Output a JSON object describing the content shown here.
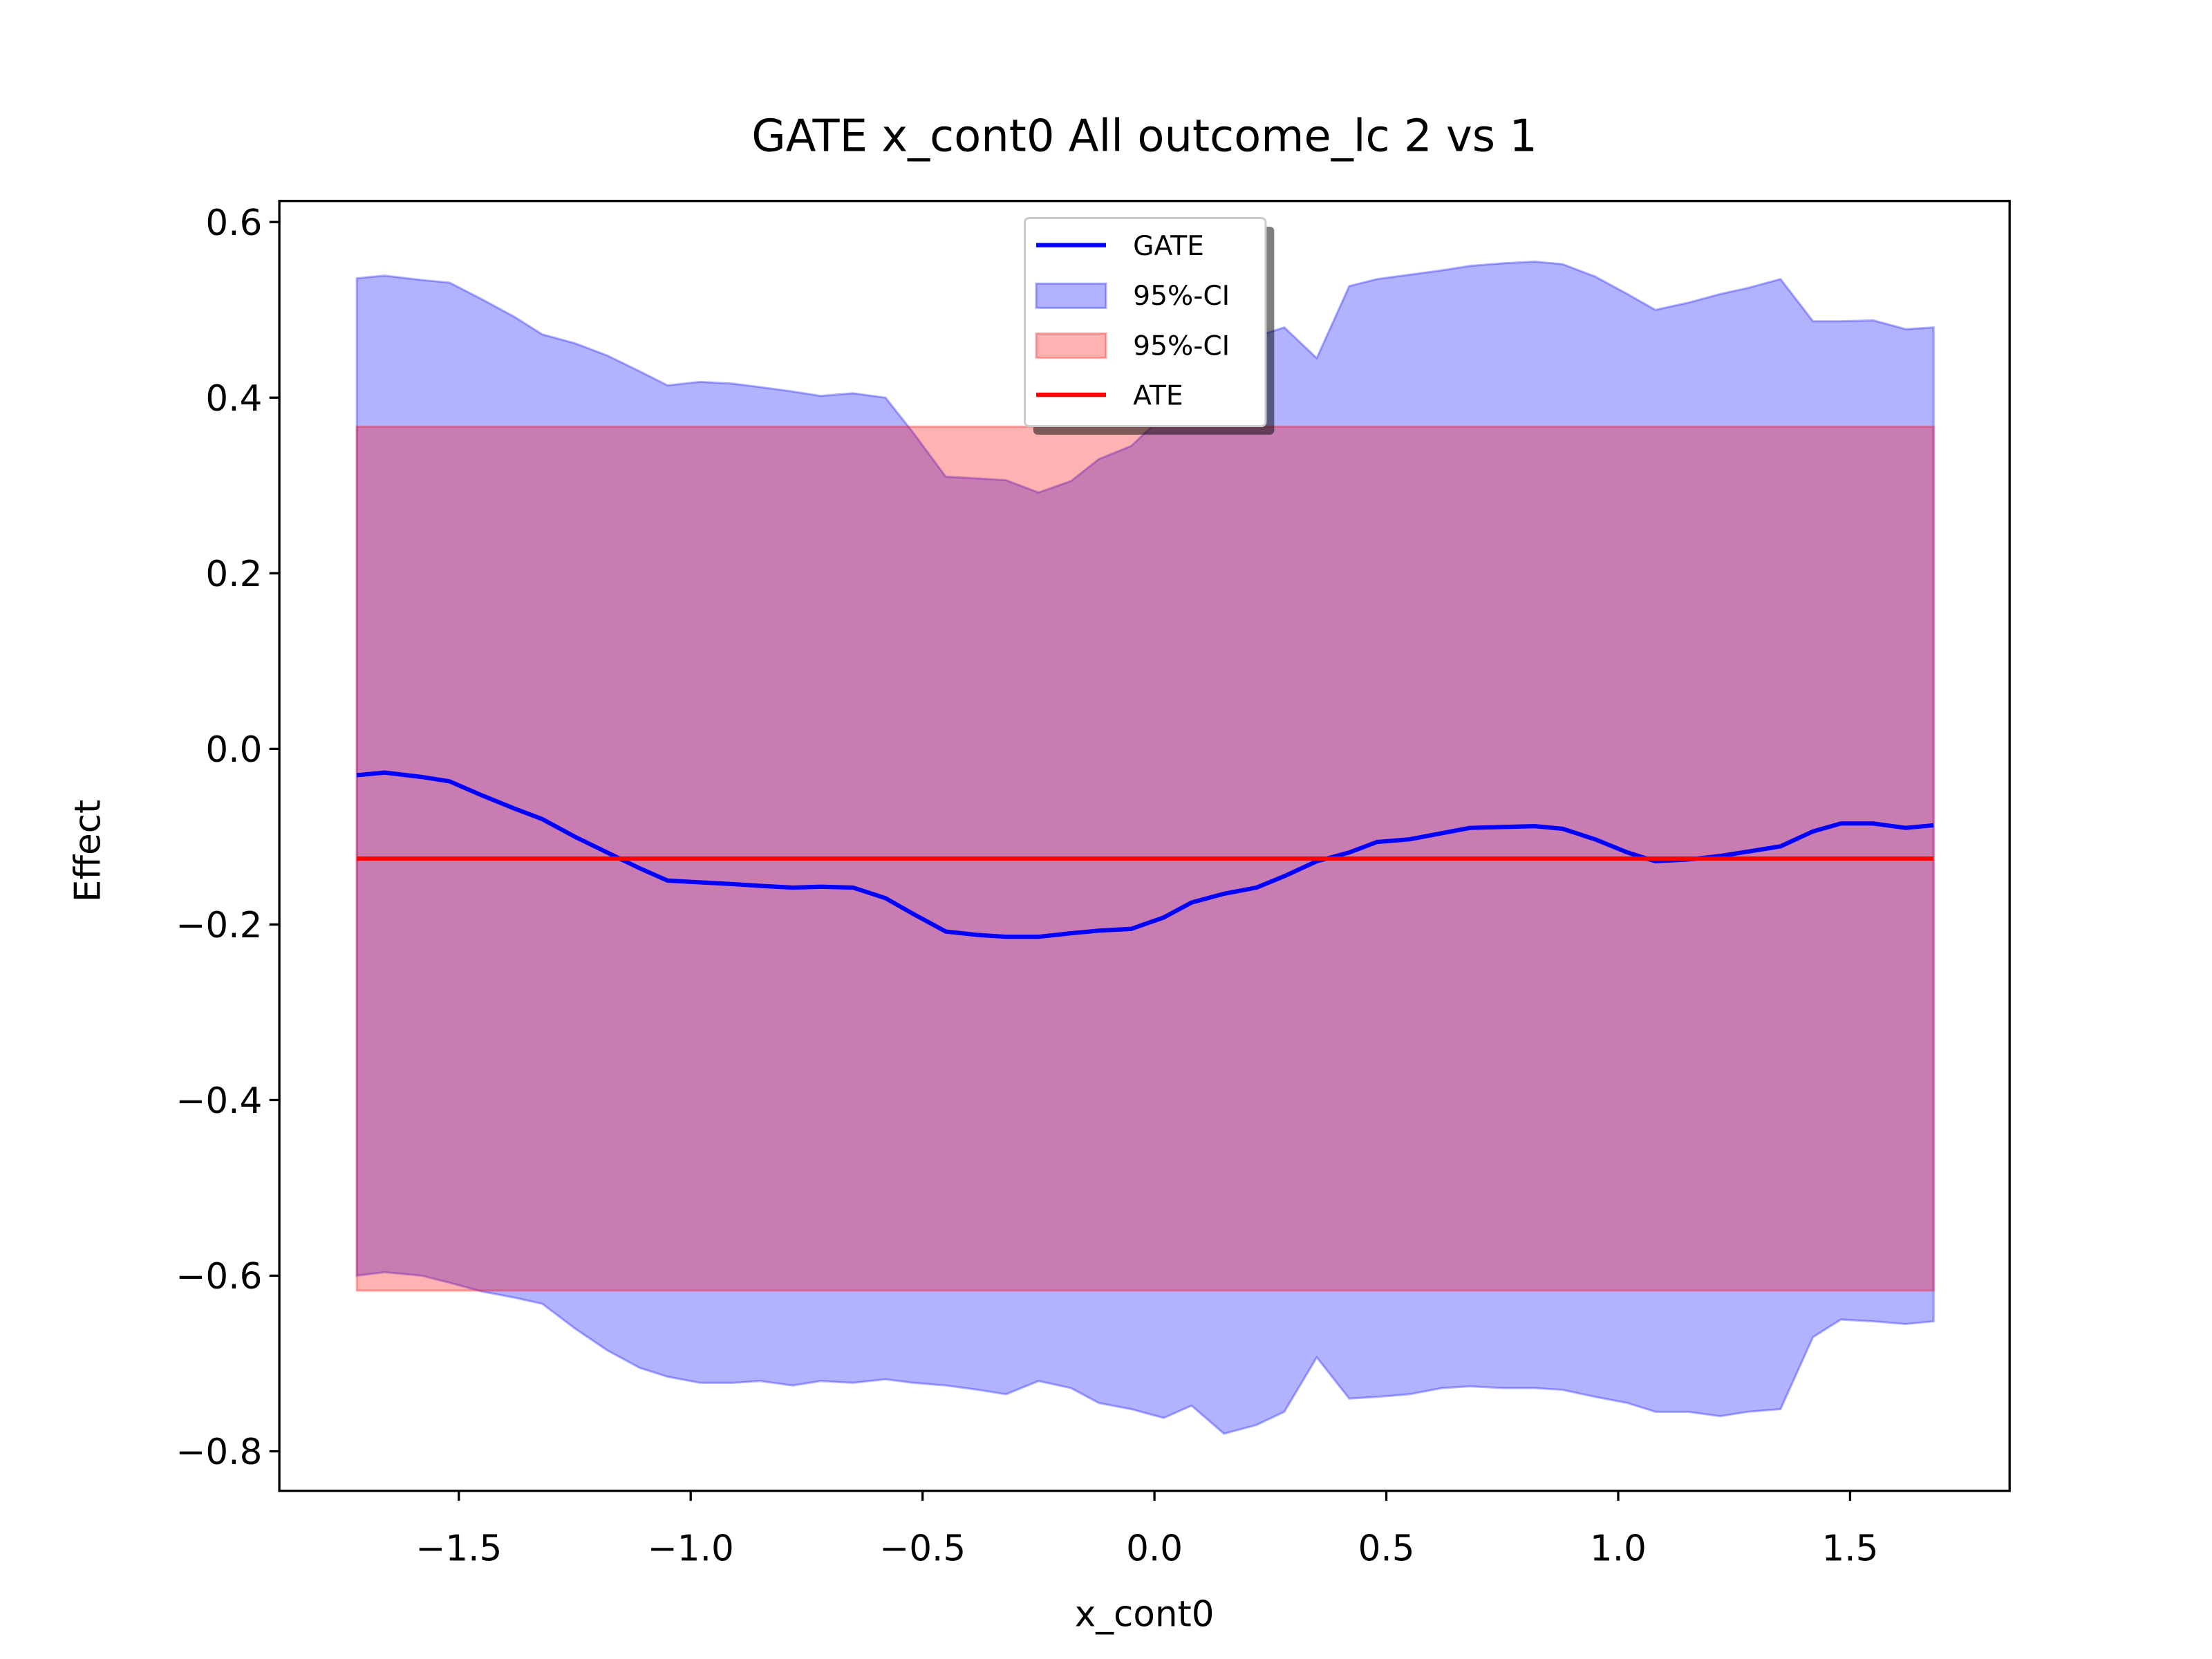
{
  "chart_data": {
    "type": "line",
    "title": "GATE x_cont0 All outcome_lc  2 vs 1",
    "xlabel": "x_cont0",
    "ylabel": "Effect",
    "x": [
      -1.72,
      -1.66,
      -1.58,
      -1.52,
      -1.45,
      -1.38,
      -1.32,
      -1.25,
      -1.18,
      -1.11,
      -1.05,
      -0.98,
      -0.91,
      -0.85,
      -0.78,
      -0.72,
      -0.65,
      -0.58,
      -0.52,
      -0.45,
      -0.38,
      -0.32,
      -0.25,
      -0.18,
      -0.12,
      -0.05,
      0.02,
      0.08,
      0.15,
      0.22,
      0.28,
      0.35,
      0.42,
      0.48,
      0.55,
      0.62,
      0.68,
      0.75,
      0.82,
      0.88,
      0.95,
      1.02,
      1.08,
      1.15,
      1.22,
      1.28,
      1.35,
      1.42,
      1.48,
      1.55,
      1.62,
      1.68
    ],
    "series": [
      {
        "name": "GATE",
        "color": "#0000ff",
        "values": [
          -0.03,
          -0.027,
          -0.032,
          -0.037,
          -0.053,
          -0.068,
          -0.08,
          -0.1,
          -0.118,
          -0.136,
          -0.15,
          -0.152,
          -0.154,
          -0.156,
          -0.158,
          -0.157,
          -0.158,
          -0.17,
          -0.188,
          -0.208,
          -0.212,
          -0.214,
          -0.214,
          -0.21,
          -0.207,
          -0.205,
          -0.192,
          -0.175,
          -0.165,
          -0.158,
          -0.145,
          -0.128,
          -0.118,
          -0.106,
          -0.103,
          -0.096,
          -0.09,
          -0.089,
          -0.088,
          -0.091,
          -0.103,
          -0.118,
          -0.128,
          -0.126,
          -0.122,
          -0.117,
          -0.111,
          -0.094,
          -0.085,
          -0.085,
          -0.09,
          -0.087
        ]
      }
    ],
    "band": {
      "name": "95%-CI",
      "color": "#0000ff",
      "upper": [
        0.536,
        0.539,
        0.534,
        0.531,
        0.512,
        0.492,
        0.472,
        0.462,
        0.448,
        0.43,
        0.414,
        0.418,
        0.416,
        0.412,
        0.407,
        0.402,
        0.405,
        0.4,
        0.36,
        0.31,
        0.308,
        0.306,
        0.292,
        0.305,
        0.33,
        0.345,
        0.38,
        0.41,
        0.44,
        0.47,
        0.48,
        0.445,
        0.527,
        0.535,
        0.54,
        0.545,
        0.55,
        0.553,
        0.555,
        0.552,
        0.538,
        0.518,
        0.5,
        0.508,
        0.518,
        0.525,
        0.535,
        0.487,
        0.487,
        0.488,
        0.478,
        0.48
      ],
      "lower": [
        -0.6,
        -0.596,
        -0.6,
        -0.608,
        -0.618,
        -0.625,
        -0.632,
        -0.66,
        -0.685,
        -0.705,
        -0.715,
        -0.722,
        -0.722,
        -0.72,
        -0.725,
        -0.72,
        -0.722,
        -0.718,
        -0.722,
        -0.725,
        -0.73,
        -0.735,
        -0.72,
        -0.728,
        -0.745,
        -0.752,
        -0.762,
        -0.748,
        -0.78,
        -0.77,
        -0.755,
        -0.693,
        -0.74,
        -0.738,
        -0.735,
        -0.728,
        -0.726,
        -0.728,
        -0.728,
        -0.73,
        -0.738,
        -0.745,
        -0.755,
        -0.755,
        -0.76,
        -0.755,
        -0.752,
        -0.67,
        -0.65,
        -0.652,
        -0.655,
        -0.652
      ]
    },
    "ate_band": {
      "name": "95%-CI",
      "color": "#ff0000",
      "lower": -0.617,
      "upper": 0.367
    },
    "ate": {
      "name": "ATE",
      "color": "#ff0000",
      "value": -0.125
    },
    "xlim": [
      -1.887,
      1.844
    ],
    "ylim": [
      -0.845,
      0.624
    ],
    "xticks": [
      {
        "value": -1.5,
        "label": "−1.5"
      },
      {
        "value": -1.0,
        "label": "−1.0"
      },
      {
        "value": -0.5,
        "label": "−0.5"
      },
      {
        "value": 0,
        "label": "0.0"
      },
      0.5,
      {
        "value": 1,
        "label": "1.0"
      },
      1.5
    ],
    "yticks": [
      {
        "value": -0.8,
        "label": "−0.8"
      },
      {
        "value": -0.6,
        "label": "−0.6"
      },
      {
        "value": -0.4,
        "label": "−0.4"
      },
      {
        "value": -0.2,
        "label": "−0.2"
      },
      {
        "value": 0,
        "label": "0.0"
      },
      0.2,
      0.4,
      0.6
    ],
    "legend": "upper center"
  }
}
